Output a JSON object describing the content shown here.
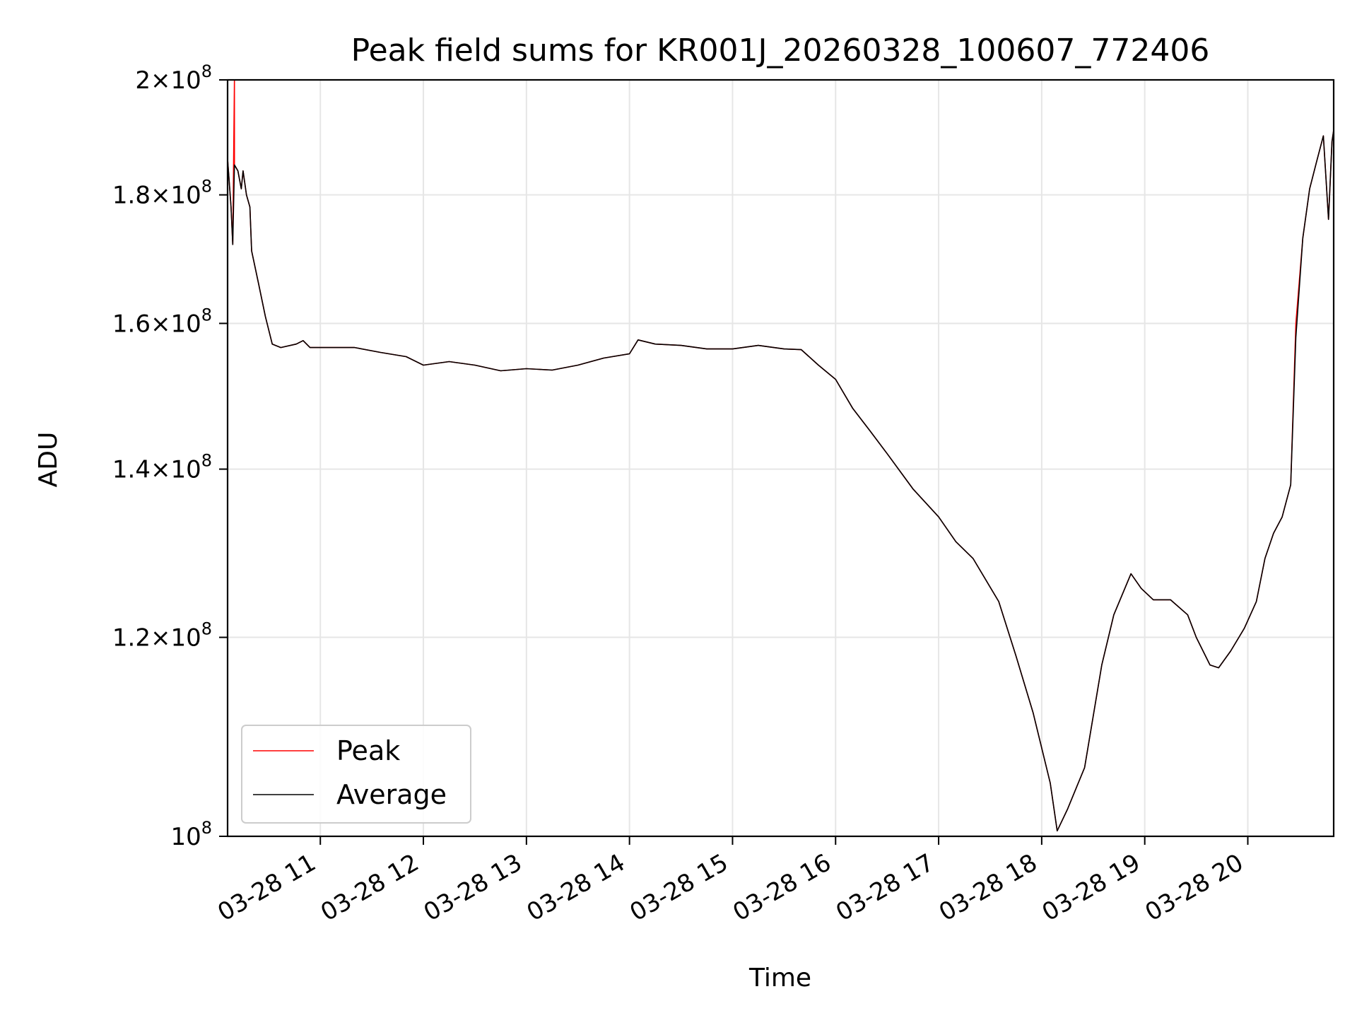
{
  "chart_data": {
    "type": "line",
    "title": "Peak field sums for KR001J_20260328_100607_772406",
    "xlabel": "Time",
    "ylabel": "ADU",
    "yscale": "log",
    "grid": true,
    "legend_placement": "lower-left",
    "xlim": [
      "2026-03-28 10:06",
      "2026-03-28 20:50"
    ],
    "ylim": [
      100000000,
      200000000
    ],
    "x_ticks": [
      {
        "at": "2026-03-28 11:00",
        "label": "03-28 11"
      },
      {
        "at": "2026-03-28 12:00",
        "label": "03-28 12"
      },
      {
        "at": "2026-03-28 13:00",
        "label": "03-28 13"
      },
      {
        "at": "2026-03-28 14:00",
        "label": "03-28 14"
      },
      {
        "at": "2026-03-28 15:00",
        "label": "03-28 15"
      },
      {
        "at": "2026-03-28 16:00",
        "label": "03-28 16"
      },
      {
        "at": "2026-03-28 17:00",
        "label": "03-28 17"
      },
      {
        "at": "2026-03-28 18:00",
        "label": "03-28 18"
      },
      {
        "at": "2026-03-28 19:00",
        "label": "03-28 19"
      },
      {
        "at": "2026-03-28 20:00",
        "label": "03-28 20"
      }
    ],
    "y_ticks": [
      {
        "value": 100000000,
        "mantissa": "",
        "exponent": "8"
      },
      {
        "value": 120000000,
        "mantissa": "1.2",
        "exponent": "8"
      },
      {
        "value": 140000000,
        "mantissa": "1.4",
        "exponent": "8"
      },
      {
        "value": 160000000,
        "mantissa": "1.6",
        "exponent": "8"
      },
      {
        "value": 180000000,
        "mantissa": "1.8",
        "exponent": "8"
      },
      {
        "value": 200000000,
        "mantissa": "2",
        "exponent": "8"
      }
    ],
    "series": [
      {
        "name": "Peak",
        "color": "#ff0000",
        "points": [
          [
            "2026-03-28 10:06",
            186000000
          ],
          [
            "2026-03-28 10:08",
            178000000
          ],
          [
            "2026-03-28 10:09",
            172000000
          ],
          [
            "2026-03-28 10:10",
            200000000
          ],
          [
            "2026-03-28 10:10",
            185000000
          ],
          [
            "2026-03-28 10:12",
            184000000
          ],
          [
            "2026-03-28 10:14",
            181000000
          ],
          [
            "2026-03-28 10:15",
            184000000
          ],
          [
            "2026-03-28 10:17",
            180000000
          ],
          [
            "2026-03-28 10:19",
            178000000
          ],
          [
            "2026-03-28 10:20",
            171000000
          ],
          [
            "2026-03-28 10:24",
            166000000
          ],
          [
            "2026-03-28 10:28",
            161000000
          ],
          [
            "2026-03-28 10:32",
            157000000
          ],
          [
            "2026-03-28 10:37",
            156500000
          ],
          [
            "2026-03-28 10:46",
            157000000
          ],
          [
            "2026-03-28 10:50",
            157500000
          ],
          [
            "2026-03-28 10:54",
            156500000
          ],
          [
            "2026-03-28 11:10",
            156500000
          ],
          [
            "2026-03-28 11:20",
            156500000
          ],
          [
            "2026-03-28 11:35",
            155800000
          ],
          [
            "2026-03-28 11:50",
            155200000
          ],
          [
            "2026-03-28 12:00",
            154000000
          ],
          [
            "2026-03-28 12:15",
            154500000
          ],
          [
            "2026-03-28 12:30",
            154000000
          ],
          [
            "2026-03-28 12:45",
            153200000
          ],
          [
            "2026-03-28 13:00",
            153500000
          ],
          [
            "2026-03-28 13:15",
            153300000
          ],
          [
            "2026-03-28 13:30",
            154000000
          ],
          [
            "2026-03-28 13:45",
            155000000
          ],
          [
            "2026-03-28 14:00",
            155600000
          ],
          [
            "2026-03-28 14:05",
            157600000
          ],
          [
            "2026-03-28 14:15",
            157000000
          ],
          [
            "2026-03-28 14:30",
            156800000
          ],
          [
            "2026-03-28 14:45",
            156300000
          ],
          [
            "2026-03-28 15:00",
            156300000
          ],
          [
            "2026-03-28 15:15",
            156800000
          ],
          [
            "2026-03-28 15:30",
            156300000
          ],
          [
            "2026-03-28 15:40",
            156200000
          ],
          [
            "2026-03-28 15:50",
            154000000
          ],
          [
            "2026-03-28 16:00",
            152000000
          ],
          [
            "2026-03-28 16:10",
            148000000
          ],
          [
            "2026-03-28 16:20",
            145000000
          ],
          [
            "2026-03-28 16:30",
            142000000
          ],
          [
            "2026-03-28 16:45",
            137500000
          ],
          [
            "2026-03-28 17:00",
            134000000
          ],
          [
            "2026-03-28 17:10",
            131000000
          ],
          [
            "2026-03-28 17:20",
            129000000
          ],
          [
            "2026-03-28 17:35",
            124000000
          ],
          [
            "2026-03-28 17:45",
            118000000
          ],
          [
            "2026-03-28 17:55",
            112000000
          ],
          [
            "2026-03-28 18:05",
            105000000
          ],
          [
            "2026-03-28 18:09",
            100500000
          ],
          [
            "2026-03-28 18:15",
            102500000
          ],
          [
            "2026-03-28 18:25",
            106500000
          ],
          [
            "2026-03-28 18:35",
            117000000
          ],
          [
            "2026-03-28 18:42",
            122500000
          ],
          [
            "2026-03-28 18:52",
            127200000
          ],
          [
            "2026-03-28 18:58",
            125500000
          ],
          [
            "2026-03-28 19:05",
            124200000
          ],
          [
            "2026-03-28 19:15",
            124200000
          ],
          [
            "2026-03-28 19:25",
            122500000
          ],
          [
            "2026-03-28 19:30",
            120000000
          ],
          [
            "2026-03-28 19:38",
            117000000
          ],
          [
            "2026-03-28 19:43",
            116700000
          ],
          [
            "2026-03-28 19:50",
            118500000
          ],
          [
            "2026-03-28 19:58",
            121000000
          ],
          [
            "2026-03-28 20:05",
            124000000
          ],
          [
            "2026-03-28 20:10",
            129000000
          ],
          [
            "2026-03-28 20:15",
            132000000
          ],
          [
            "2026-03-28 20:20",
            134000000
          ],
          [
            "2026-03-28 20:25",
            138000000
          ],
          [
            "2026-03-28 20:28",
            160000000
          ],
          [
            "2026-03-28 20:32",
            173000000
          ],
          [
            "2026-03-28 20:36",
            181000000
          ],
          [
            "2026-03-28 20:40",
            185500000
          ],
          [
            "2026-03-28 20:44",
            190000000
          ],
          [
            "2026-03-28 20:47",
            176000000
          ],
          [
            "2026-03-28 20:49",
            189000000
          ],
          [
            "2026-03-28 20:50",
            191000000
          ]
        ]
      },
      {
        "name": "Average",
        "color": "#000000",
        "points": [
          [
            "2026-03-28 10:06",
            186000000
          ],
          [
            "2026-03-28 10:08",
            178000000
          ],
          [
            "2026-03-28 10:09",
            172000000
          ],
          [
            "2026-03-28 10:10",
            185000000
          ],
          [
            "2026-03-28 10:12",
            184000000
          ],
          [
            "2026-03-28 10:14",
            181000000
          ],
          [
            "2026-03-28 10:15",
            184000000
          ],
          [
            "2026-03-28 10:17",
            180000000
          ],
          [
            "2026-03-28 10:19",
            178000000
          ],
          [
            "2026-03-28 10:20",
            171000000
          ],
          [
            "2026-03-28 10:24",
            166000000
          ],
          [
            "2026-03-28 10:28",
            161000000
          ],
          [
            "2026-03-28 10:32",
            157000000
          ],
          [
            "2026-03-28 10:37",
            156500000
          ],
          [
            "2026-03-28 10:46",
            157000000
          ],
          [
            "2026-03-28 10:50",
            157500000
          ],
          [
            "2026-03-28 10:54",
            156500000
          ],
          [
            "2026-03-28 11:10",
            156500000
          ],
          [
            "2026-03-28 11:20",
            156500000
          ],
          [
            "2026-03-28 11:35",
            155800000
          ],
          [
            "2026-03-28 11:50",
            155200000
          ],
          [
            "2026-03-28 12:00",
            154000000
          ],
          [
            "2026-03-28 12:15",
            154500000
          ],
          [
            "2026-03-28 12:30",
            154000000
          ],
          [
            "2026-03-28 12:45",
            153200000
          ],
          [
            "2026-03-28 13:00",
            153500000
          ],
          [
            "2026-03-28 13:15",
            153300000
          ],
          [
            "2026-03-28 13:30",
            154000000
          ],
          [
            "2026-03-28 13:45",
            155000000
          ],
          [
            "2026-03-28 14:00",
            155600000
          ],
          [
            "2026-03-28 14:05",
            157600000
          ],
          [
            "2026-03-28 14:15",
            157000000
          ],
          [
            "2026-03-28 14:30",
            156800000
          ],
          [
            "2026-03-28 14:45",
            156300000
          ],
          [
            "2026-03-28 15:00",
            156300000
          ],
          [
            "2026-03-28 15:15",
            156800000
          ],
          [
            "2026-03-28 15:30",
            156300000
          ],
          [
            "2026-03-28 15:40",
            156200000
          ],
          [
            "2026-03-28 15:50",
            154000000
          ],
          [
            "2026-03-28 16:00",
            152000000
          ],
          [
            "2026-03-28 16:10",
            148000000
          ],
          [
            "2026-03-28 16:20",
            145000000
          ],
          [
            "2026-03-28 16:30",
            142000000
          ],
          [
            "2026-03-28 16:45",
            137500000
          ],
          [
            "2026-03-28 17:00",
            134000000
          ],
          [
            "2026-03-28 17:10",
            131000000
          ],
          [
            "2026-03-28 17:20",
            129000000
          ],
          [
            "2026-03-28 17:35",
            124000000
          ],
          [
            "2026-03-28 17:45",
            118000000
          ],
          [
            "2026-03-28 17:55",
            112000000
          ],
          [
            "2026-03-28 18:05",
            105000000
          ],
          [
            "2026-03-28 18:09",
            100500000
          ],
          [
            "2026-03-28 18:15",
            102500000
          ],
          [
            "2026-03-28 18:25",
            106500000
          ],
          [
            "2026-03-28 18:35",
            117000000
          ],
          [
            "2026-03-28 18:42",
            122500000
          ],
          [
            "2026-03-28 18:52",
            127200000
          ],
          [
            "2026-03-28 18:58",
            125500000
          ],
          [
            "2026-03-28 19:05",
            124200000
          ],
          [
            "2026-03-28 19:15",
            124200000
          ],
          [
            "2026-03-28 19:25",
            122500000
          ],
          [
            "2026-03-28 19:30",
            120000000
          ],
          [
            "2026-03-28 19:38",
            117000000
          ],
          [
            "2026-03-28 19:43",
            116700000
          ],
          [
            "2026-03-28 19:50",
            118500000
          ],
          [
            "2026-03-28 19:58",
            121000000
          ],
          [
            "2026-03-28 20:05",
            124000000
          ],
          [
            "2026-03-28 20:10",
            129000000
          ],
          [
            "2026-03-28 20:15",
            132000000
          ],
          [
            "2026-03-28 20:20",
            134000000
          ],
          [
            "2026-03-28 20:25",
            138000000
          ],
          [
            "2026-03-28 20:28",
            158000000
          ],
          [
            "2026-03-28 20:32",
            173000000
          ],
          [
            "2026-03-28 20:36",
            181000000
          ],
          [
            "2026-03-28 20:40",
            185500000
          ],
          [
            "2026-03-28 20:44",
            190000000
          ],
          [
            "2026-03-28 20:47",
            176000000
          ],
          [
            "2026-03-28 20:49",
            189000000
          ],
          [
            "2026-03-28 20:50",
            191000000
          ]
        ]
      }
    ]
  }
}
